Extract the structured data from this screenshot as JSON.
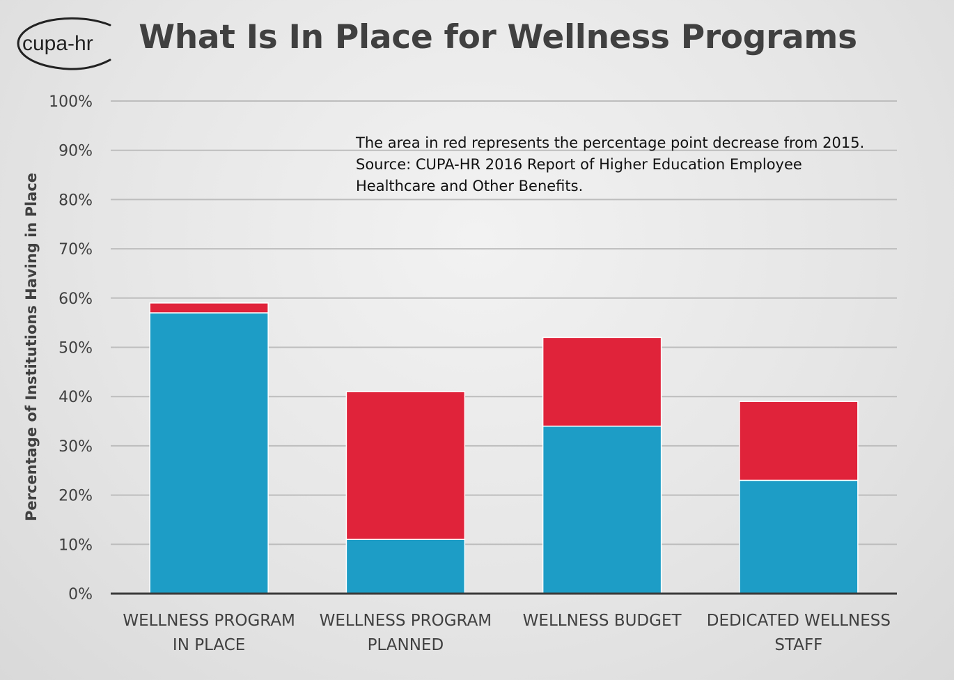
{
  "header": {
    "logo_text": "cupa-hr",
    "title": "What Is In Place for Wellness Programs"
  },
  "annotation": {
    "lines": [
      "The area in red represents the percentage point decrease from 2015.",
      "Source: CUPA-HR 2016 Report of Higher Education Employee",
      "Healthcare and Other Benefits."
    ]
  },
  "colors": {
    "current": "#1d9dc6",
    "decrease": "#e0233a",
    "grid": "#bdbdbd",
    "axis": "#3a3a3a",
    "text": "#404040"
  },
  "chart_data": {
    "type": "bar",
    "stacked": true,
    "title": "What Is In Place for Wellness Programs",
    "xlabel": "",
    "ylabel": "Percentage of Institutions Having in Place",
    "ylim": [
      0,
      100
    ],
    "yticks": [
      "0%",
      "10%",
      "20%",
      "30%",
      "40%",
      "50%",
      "60%",
      "70%",
      "80%",
      "90%",
      "100%"
    ],
    "grid": true,
    "legend": "none",
    "categories": [
      [
        "WELLNESS PROGRAM",
        "IN PLACE"
      ],
      [
        "WELLNESS PROGRAM",
        "PLANNED"
      ],
      [
        "WELLNESS BUDGET"
      ],
      [
        "DEDICATED WELLNESS",
        "STAFF"
      ]
    ],
    "series": [
      {
        "values": [
          57,
          11,
          34,
          23
        ]
      },
      {
        "values": [
          2,
          30,
          18,
          16
        ]
      }
    ]
  }
}
